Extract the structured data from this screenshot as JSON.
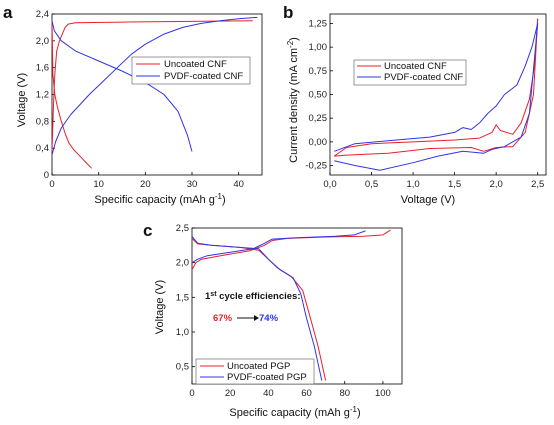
{
  "colors": {
    "uncoated": "#e8202a",
    "coated": "#2f35e8",
    "axis": "#000000"
  },
  "chart_data": [
    {
      "panel": "a",
      "type": "line",
      "xlabel": "Specific capacity (mAh g-1)",
      "ylabel": "Voltage (V)",
      "xlim": [
        0,
        45
      ],
      "ylim": [
        0,
        2.4
      ],
      "xticks": [
        "0",
        "10",
        "20",
        "30",
        "40"
      ],
      "xtick_values": [
        0,
        10,
        20,
        30,
        40
      ],
      "yticks": [
        "0",
        "0,4",
        "0,8",
        "1,2",
        "1,6",
        "2,0",
        "2,4"
      ],
      "ytick_values": [
        0,
        0.4,
        0.8,
        1.2,
        1.6,
        2.0,
        2.4
      ],
      "legend": [
        "Uncoated CNF",
        "PVDF-coated CNF"
      ],
      "series": [
        {
          "name": "Uncoated CNF",
          "color_key": "uncoated",
          "segments": [
            [
              [
                0.0,
                0.35
              ],
              [
                0.3,
                1.0
              ],
              [
                0.6,
                1.5
              ],
              [
                1.0,
                1.85
              ],
              [
                1.6,
                2.0
              ],
              [
                2.2,
                2.1
              ],
              [
                2.8,
                2.2
              ],
              [
                3.5,
                2.25
              ],
              [
                5,
                2.27
              ],
              [
                15,
                2.28
              ],
              [
                30,
                2.29
              ],
              [
                43,
                2.3
              ]
            ],
            [
              [
                0.0,
                2.3
              ],
              [
                0.2,
                1.5
              ],
              [
                0.6,
                1.2
              ],
              [
                1.2,
                1.0
              ],
              [
                2.0,
                0.8
              ],
              [
                2.8,
                0.62
              ],
              [
                3.6,
                0.48
              ],
              [
                4.6,
                0.38
              ],
              [
                6,
                0.28
              ],
              [
                7.5,
                0.17
              ],
              [
                8.5,
                0.1
              ]
            ]
          ]
        },
        {
          "name": "PVDF-coated CNF",
          "color_key": "coated",
          "segments": [
            [
              [
                0.0,
                0.3
              ],
              [
                0.8,
                0.5
              ],
              [
                2,
                0.7
              ],
              [
                4,
                0.9
              ],
              [
                6,
                1.05
              ],
              [
                8,
                1.2
              ],
              [
                11,
                1.4
              ],
              [
                14,
                1.6
              ],
              [
                17,
                1.8
              ],
              [
                20,
                1.95
              ],
              [
                24,
                2.1
              ],
              [
                28,
                2.2
              ],
              [
                32,
                2.26
              ],
              [
                36,
                2.3
              ],
              [
                40,
                2.33
              ],
              [
                44,
                2.35
              ]
            ],
            [
              [
                0.0,
                2.3
              ],
              [
                0.5,
                2.15
              ],
              [
                2,
                2.0
              ],
              [
                5,
                1.85
              ],
              [
                10,
                1.7
              ],
              [
                15,
                1.55
              ],
              [
                20,
                1.38
              ],
              [
                24,
                1.2
              ],
              [
                27,
                0.95
              ],
              [
                29,
                0.6
              ],
              [
                30,
                0.35
              ]
            ]
          ]
        }
      ]
    },
    {
      "panel": "b",
      "type": "line",
      "xlabel": "Voltage (V)",
      "ylabel": "Current density (mA cm-2)",
      "xlim": [
        0,
        2.6
      ],
      "ylim": [
        -0.35,
        1.35
      ],
      "xticks": [
        "0,0",
        "0,5",
        "1,0",
        "1,5",
        "2,0",
        "2,5"
      ],
      "xtick_values": [
        0,
        0.5,
        1.0,
        1.5,
        2.0,
        2.5
      ],
      "yticks": [
        "-0,25",
        "0,00",
        "0,25",
        "0,50",
        "0,75",
        "1,00",
        "1,25"
      ],
      "ytick_values": [
        -0.25,
        0,
        0.25,
        0.5,
        0.75,
        1.0,
        1.25
      ],
      "legend": [
        "Uncoated CNF",
        "PVDF-coated CNF"
      ],
      "series": [
        {
          "name": "Uncoated CNF",
          "color_key": "uncoated",
          "segments": [
            [
              [
                0.05,
                -0.15
              ],
              [
                0.2,
                -0.06
              ],
              [
                0.5,
                -0.02
              ],
              [
                1.0,
                0.0
              ],
              [
                1.5,
                0.02
              ],
              [
                1.8,
                0.04
              ],
              [
                1.95,
                0.1
              ],
              [
                2.0,
                0.18
              ],
              [
                2.05,
                0.12
              ],
              [
                2.2,
                0.08
              ],
              [
                2.3,
                0.2
              ],
              [
                2.4,
                0.45
              ],
              [
                2.46,
                0.8
              ],
              [
                2.5,
                1.3
              ]
            ],
            [
              [
                2.5,
                1.3
              ],
              [
                2.45,
                0.5
              ],
              [
                2.35,
                0.1
              ],
              [
                2.2,
                -0.05
              ],
              [
                2.0,
                -0.06
              ],
              [
                1.85,
                -0.1
              ],
              [
                1.7,
                -0.06
              ],
              [
                1.2,
                -0.07
              ],
              [
                0.7,
                -0.12
              ],
              [
                0.2,
                -0.14
              ],
              [
                0.05,
                -0.15
              ]
            ]
          ]
        },
        {
          "name": "PVDF-coated CNF",
          "color_key": "coated",
          "segments": [
            [
              [
                0.05,
                -0.1
              ],
              [
                0.3,
                -0.02
              ],
              [
                0.8,
                0.02
              ],
              [
                1.2,
                0.05
              ],
              [
                1.5,
                0.1
              ],
              [
                1.6,
                0.15
              ],
              [
                1.7,
                0.13
              ],
              [
                1.8,
                0.2
              ],
              [
                1.9,
                0.3
              ],
              [
                2.0,
                0.38
              ],
              [
                2.1,
                0.5
              ],
              [
                2.25,
                0.6
              ],
              [
                2.35,
                0.8
              ],
              [
                2.43,
                1.0
              ],
              [
                2.5,
                1.25
              ]
            ],
            [
              [
                2.5,
                1.25
              ],
              [
                2.4,
                0.3
              ],
              [
                2.3,
                0.05
              ],
              [
                2.1,
                -0.05
              ],
              [
                1.95,
                -0.08
              ],
              [
                1.85,
                -0.12
              ],
              [
                1.6,
                -0.1
              ],
              [
                1.3,
                -0.15
              ],
              [
                1.0,
                -0.22
              ],
              [
                0.6,
                -0.3
              ],
              [
                0.3,
                -0.25
              ],
              [
                0.05,
                -0.2
              ]
            ]
          ]
        }
      ]
    },
    {
      "panel": "c",
      "type": "line",
      "xlabel": "Specific capacity (mAh g-1)",
      "ylabel": "Voltage (V)",
      "xlim": [
        0,
        110
      ],
      "ylim": [
        0.25,
        2.5
      ],
      "xticks": [
        "0",
        "20",
        "40",
        "60",
        "80",
        "100"
      ],
      "xtick_values": [
        0,
        20,
        40,
        60,
        80,
        100
      ],
      "yticks": [
        "0,5",
        "1,0",
        "1,5",
        "2,0",
        "2,5"
      ],
      "ytick_values": [
        0.5,
        1.0,
        1.5,
        2.0,
        2.5
      ],
      "legend": [
        "Uncoated PGP",
        "PVDF-coated PGP"
      ],
      "annotation": {
        "title": "1st cycle efficiencies:",
        "from": "67%",
        "to": "74%"
      },
      "series": [
        {
          "name": "Uncoated PGP",
          "color_key": "uncoated",
          "segments": [
            [
              [
                0,
                1.9
              ],
              [
                2,
                2.0
              ],
              [
                5,
                2.05
              ],
              [
                15,
                2.1
              ],
              [
                30,
                2.17
              ],
              [
                38,
                2.25
              ],
              [
                42,
                2.32
              ],
              [
                50,
                2.35
              ],
              [
                70,
                2.37
              ],
              [
                90,
                2.38
              ],
              [
                100,
                2.4
              ],
              [
                104,
                2.47
              ]
            ],
            [
              [
                0,
                2.35
              ],
              [
                3,
                2.27
              ],
              [
                10,
                2.25
              ],
              [
                25,
                2.22
              ],
              [
                35,
                2.18
              ],
              [
                40,
                2.05
              ],
              [
                45,
                1.92
              ],
              [
                52,
                1.8
              ],
              [
                58,
                1.6
              ],
              [
                62,
                1.2
              ],
              [
                66,
                0.8
              ],
              [
                70,
                0.3
              ]
            ]
          ]
        },
        {
          "name": "PVDF-coated PGP",
          "color_key": "coated",
          "segments": [
            [
              [
                0,
                2.0
              ],
              [
                3,
                2.05
              ],
              [
                8,
                2.1
              ],
              [
                20,
                2.15
              ],
              [
                32,
                2.2
              ],
              [
                38,
                2.28
              ],
              [
                42,
                2.34
              ],
              [
                55,
                2.36
              ],
              [
                75,
                2.38
              ],
              [
                85,
                2.4
              ],
              [
                91,
                2.46
              ]
            ],
            [
              [
                0,
                2.38
              ],
              [
                3,
                2.28
              ],
              [
                10,
                2.25
              ],
              [
                25,
                2.22
              ],
              [
                35,
                2.2
              ],
              [
                40,
                2.05
              ],
              [
                46,
                1.9
              ],
              [
                53,
                1.78
              ],
              [
                57,
                1.55
              ],
              [
                60,
                1.2
              ],
              [
                64,
                0.8
              ],
              [
                68,
                0.3
              ]
            ]
          ]
        }
      ]
    }
  ]
}
